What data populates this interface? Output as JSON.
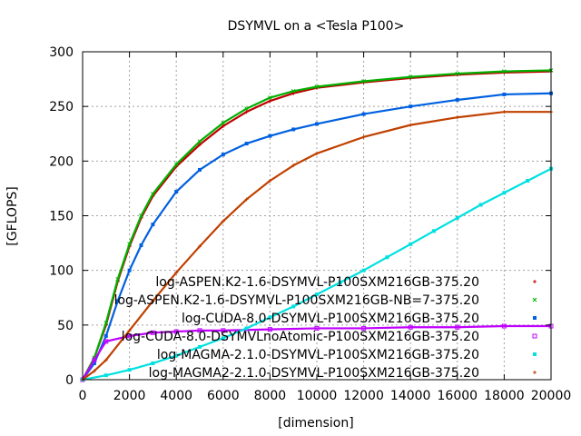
{
  "chart_data": {
    "type": "scatter",
    "title": "DSYMVL on a <Tesla P100>",
    "xlabel": "[dimension]",
    "ylabel": "[GFLOPS]",
    "xlim": [
      0,
      20000
    ],
    "ylim": [
      0,
      300
    ],
    "xticks": [
      0,
      2000,
      4000,
      6000,
      8000,
      10000,
      12000,
      14000,
      16000,
      18000,
      20000
    ],
    "yticks": [
      0,
      50,
      100,
      150,
      200,
      250,
      300
    ],
    "grid": true,
    "legend_position": "bottom-right",
    "series": [
      {
        "name": "log-ASPEN.K2-1.6-DSYMVL-P100SXM216GB-375.20",
        "color": "#c00000",
        "marker": "plus",
        "x": [
          0,
          500,
          1000,
          1500,
          2000,
          2500,
          3000,
          4000,
          5000,
          6000,
          7000,
          8000,
          9000,
          10000,
          12000,
          14000,
          16000,
          18000,
          20000
        ],
        "y": [
          0,
          20,
          50,
          90,
          122,
          148,
          168,
          195,
          215,
          232,
          245,
          255,
          262,
          267,
          272,
          276,
          279,
          281,
          282
        ]
      },
      {
        "name": "log-ASPEN.K2-1.6-DSYMVL-P100SXM216GB-NB=7-375.20",
        "color": "#00b000",
        "marker": "cross",
        "x": [
          0,
          500,
          1000,
          1500,
          2000,
          2500,
          3000,
          4000,
          5000,
          6000,
          7000,
          8000,
          9000,
          10000,
          12000,
          14000,
          16000,
          18000,
          20000
        ],
        "y": [
          0,
          20,
          52,
          92,
          124,
          150,
          170,
          197,
          218,
          235,
          248,
          258,
          264,
          268,
          273,
          277,
          280,
          282,
          283
        ]
      },
      {
        "name": "log-CUDA-8.0-DSYMVL-P100SXM216GB-375.20",
        "color": "#0060e0",
        "marker": "square",
        "x": [
          0,
          500,
          1000,
          1500,
          2000,
          2500,
          3000,
          4000,
          5000,
          6000,
          7000,
          8000,
          9000,
          10000,
          12000,
          14000,
          16000,
          18000,
          20000
        ],
        "y": [
          0,
          15,
          40,
          72,
          100,
          123,
          142,
          172,
          192,
          206,
          216,
          223,
          229,
          234,
          243,
          250,
          256,
          261,
          262
        ]
      },
      {
        "name": "log-CUDA-8.0-DSYMVLnoAtomic-P100SXM216GB-375.20",
        "color": "#c000ff",
        "marker": "box",
        "x": [
          0,
          500,
          1000,
          2000,
          3000,
          4000,
          5000,
          6000,
          8000,
          10000,
          12000,
          14000,
          16000,
          18000,
          20000
        ],
        "y": [
          0,
          18,
          35,
          40,
          43,
          44,
          45,
          45,
          46,
          47,
          47,
          48,
          48,
          49,
          49
        ]
      },
      {
        "name": "log-MAGMA-2.1.0-DSYMVL-P100SXM216GB-375.20",
        "color": "#00e0e0",
        "marker": "square",
        "x": [
          0,
          1000,
          2000,
          3000,
          4000,
          5000,
          6000,
          7000,
          8000,
          9000,
          10000,
          11000,
          12000,
          13000,
          14000,
          15000,
          16000,
          17000,
          18000,
          19000,
          20000
        ],
        "y": [
          0,
          4,
          9,
          15,
          22,
          30,
          38,
          47,
          57,
          67,
          78,
          89,
          100,
          112,
          124,
          136,
          148,
          160,
          171,
          182,
          193
        ]
      },
      {
        "name": "log-MAGMA2-2.1.0-DSYMVL-P100SXM216GB-375.20",
        "color": "#c04000",
        "marker": "plus",
        "x": [
          0,
          500,
          1000,
          2000,
          3000,
          4000,
          5000,
          6000,
          7000,
          8000,
          9000,
          10000,
          12000,
          14000,
          16000,
          18000,
          20000
        ],
        "y": [
          0,
          8,
          18,
          45,
          72,
          98,
          122,
          145,
          165,
          182,
          196,
          207,
          222,
          233,
          240,
          245,
          245
        ]
      }
    ]
  }
}
